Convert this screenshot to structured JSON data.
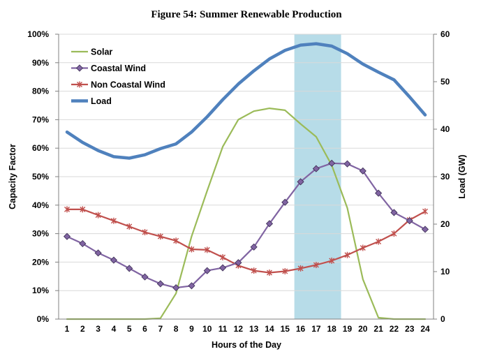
{
  "chart_data": {
    "type": "line",
    "title": "Figure 54:  Summer Renewable Production",
    "xlabel": "Hours of the Day",
    "ylabel": "Capacity Factor",
    "ylabel_right": "Load (GW)",
    "x": [
      1,
      2,
      3,
      4,
      5,
      6,
      7,
      8,
      9,
      10,
      11,
      12,
      13,
      14,
      15,
      16,
      17,
      18,
      19,
      20,
      21,
      22,
      23,
      24
    ],
    "x_ticks": [
      "1",
      "2",
      "3",
      "4",
      "5",
      "6",
      "7",
      "8",
      "9",
      "10",
      "11",
      "12",
      "13",
      "14",
      "15",
      "16",
      "17",
      "18",
      "19",
      "20",
      "21",
      "22",
      "23",
      "24"
    ],
    "ylim": [
      0,
      100
    ],
    "y_ticks": [
      "0%",
      "10%",
      "20%",
      "30%",
      "40%",
      "50%",
      "60%",
      "70%",
      "80%",
      "90%",
      "100%"
    ],
    "ylim_right": [
      0,
      60
    ],
    "y_ticks_right": [
      "0",
      "10",
      "20",
      "30",
      "40",
      "50",
      "60"
    ],
    "legend_position": "top-left",
    "highlight": {
      "x_start": 15.6,
      "x_end": 18.6,
      "color": "#b7dce8"
    },
    "series": [
      {
        "name": "Solar",
        "axis": "left",
        "color": "#9bbb59",
        "marker": "none",
        "values": [
          0,
          0,
          0,
          0,
          0,
          0,
          0.3,
          9,
          29,
          45,
          60.5,
          70,
          73,
          74,
          73.3,
          68.5,
          64,
          54,
          39,
          14,
          0.5,
          0,
          0,
          0
        ]
      },
      {
        "name": "Coastal Wind",
        "axis": "left",
        "color": "#8064a2",
        "marker": "diamond",
        "values": [
          29,
          26.5,
          23.2,
          20.7,
          17.8,
          14.8,
          12.4,
          11,
          11.7,
          17,
          18,
          19.8,
          25.3,
          33.5,
          41,
          48.2,
          52.8,
          54.7,
          54.5,
          52,
          44.2,
          37.4,
          34.5,
          31.5
        ]
      },
      {
        "name": "Non Coastal Wind",
        "axis": "left",
        "color": "#c0504d",
        "marker": "star",
        "values": [
          38.5,
          38.5,
          36.5,
          34.5,
          32.5,
          30.5,
          29,
          27.5,
          24.5,
          24.3,
          21.7,
          18.8,
          17,
          16.3,
          16.8,
          17.8,
          19,
          20.5,
          22.5,
          25,
          27.2,
          30,
          34.8,
          37.8
        ]
      },
      {
        "name": "Load",
        "axis": "right",
        "color": "#4f81bd",
        "marker": "none",
        "values": [
          39.4,
          37.2,
          35.5,
          34.2,
          33.9,
          34.6,
          35.9,
          36.9,
          39.4,
          42.6,
          46.2,
          49.5,
          52.3,
          54.8,
          56.6,
          57.7,
          58,
          57.5,
          55.9,
          53.7,
          52,
          50.4,
          46.8,
          43
        ]
      }
    ]
  }
}
